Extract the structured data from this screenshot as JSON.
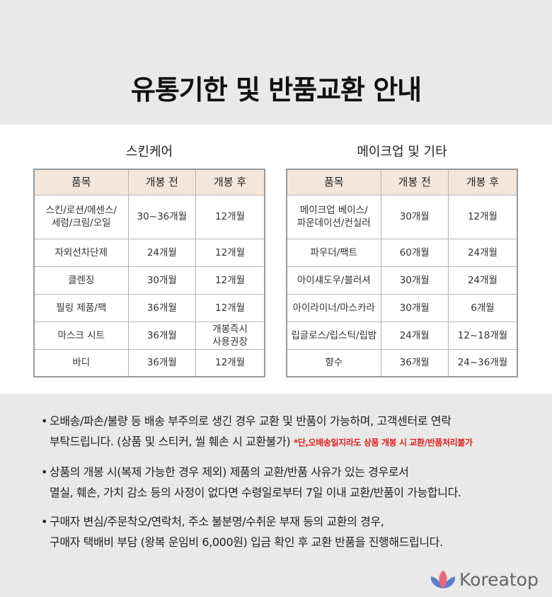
{
  "title": "유통기한 및 반품교환 안내",
  "skincare": {
    "heading": "스킨케어",
    "headers": [
      "품목",
      "개봉 전",
      "개봉 후"
    ],
    "rows": [
      [
        "스킨/로션/에센스/\n세럼/크림/오일",
        "30~36개월",
        "12개월"
      ],
      [
        "자외선차단제",
        "24개월",
        "12개월"
      ],
      [
        "클렌징",
        "30개월",
        "12개월"
      ],
      [
        "필링 제품/팩",
        "36개월",
        "12개월"
      ],
      [
        "마스크 시트",
        "36개월",
        "개봉즉시\n사용권장"
      ],
      [
        "바디",
        "36개월",
        "12개월"
      ]
    ]
  },
  "makeup": {
    "heading": "메이크업 및 기타",
    "headers": [
      "품목",
      "개봉 전",
      "개봉 후"
    ],
    "rows": [
      [
        "메이크업 베이스/\n파운데이션/컨실러",
        "30개월",
        "12개월"
      ],
      [
        "파우더/팩트",
        "60개월",
        "24개월"
      ],
      [
        "아이섀도우/블러셔",
        "30개월",
        "24개월"
      ],
      [
        "아이라이너/마스카라",
        "30개월",
        "6개월"
      ],
      [
        "립글로스/립스틱/립밤",
        "24개월",
        "12~18개월"
      ],
      [
        "향수",
        "36개월",
        "24~36개월"
      ]
    ]
  },
  "notes": [
    {
      "line1": "오배송/파손/불량 등 배송 부주의로 생긴 경우 교환 및 반품이 가능하며, 고객센터로 연락",
      "line2": "부탁드립니다. (상품 및 스티커, 씰 훼손 시 교환불가)",
      "red": "*단,오배송일지라도 상품 개봉 시 교환/반품처리불가"
    },
    {
      "line1": "상품의 개봉 시(복제 가능한 경우 제외) 제품의 교환/반품 사유가 있는 경우로서",
      "line2": "멸실, 훼손, 가치 감소 등의 사정이 없다면 수령일로부터 7일 이내 교환/반품이 가능합니다."
    },
    {
      "line1": "구매자 변심/주문착오/연락처, 주소 불분명/수취운 부재 등의 교환의 경우,",
      "line2": "구매자 택배비 부담 (왕복 운임비 6,000원) 입금 확인 후 교환 반품을 진행해드립니다."
    }
  ],
  "bullet": "•",
  "logo": {
    "text": "Koreatop",
    "colors": {
      "pink": "#e8687e",
      "blue": "#5b7fc4"
    }
  },
  "colors": {
    "header_bg": "#f5e6db",
    "band_bg": "#e9e9e9",
    "red": "#e02020"
  }
}
